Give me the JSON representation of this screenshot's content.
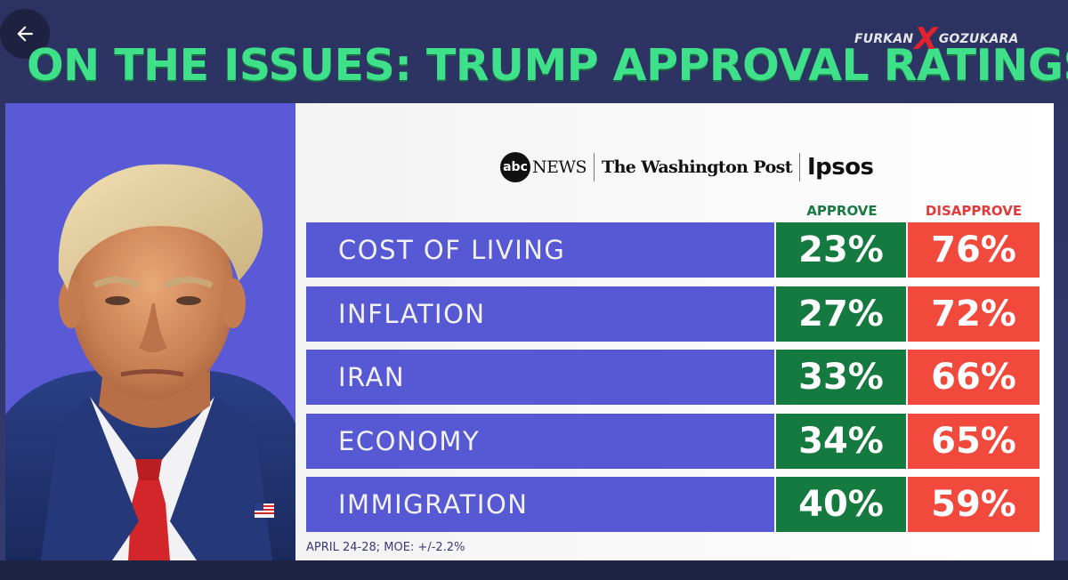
{
  "nav": {
    "back_icon": "arrow-left-icon"
  },
  "headline": "ON THE ISSUES: TRUMP APPROVAL RATINGS",
  "watermark": {
    "left": "FURKAN",
    "mark": "X",
    "right": "GOZUKARA"
  },
  "logos": {
    "abc_mark": "abc",
    "abc_text": "NEWS",
    "wapo": "The Washington Post",
    "ipsos": "Ipsos"
  },
  "colors": {
    "headline": "#3fe08a",
    "label_bar": "#5658d4",
    "approve": "#157a3f",
    "disapprove": "#f2493d",
    "left_panel": "#5a5ad6"
  },
  "chart_data": {
    "type": "table",
    "columns": [
      "APPROVE",
      "DISAPPROVE"
    ],
    "categories": [
      "COST OF LIVING",
      "INFLATION",
      "IRAN",
      "ECONOMY",
      "IMMIGRATION"
    ],
    "series": [
      {
        "name": "APPROVE",
        "values": [
          23,
          27,
          33,
          34,
          40
        ]
      },
      {
        "name": "DISAPPROVE",
        "values": [
          76,
          72,
          66,
          65,
          59
        ]
      }
    ],
    "rows": [
      {
        "label": "COST OF LIVING",
        "approve": "23%",
        "disapprove": "76%"
      },
      {
        "label": "INFLATION",
        "approve": "27%",
        "disapprove": "72%"
      },
      {
        "label": "IRAN",
        "approve": "33%",
        "disapprove": "66%"
      },
      {
        "label": "ECONOMY",
        "approve": "34%",
        "disapprove": "65%"
      },
      {
        "label": "IMMIGRATION",
        "approve": "40%",
        "disapprove": "59%"
      }
    ],
    "footnote": "APRIL 24-28; MOE: +/-2.2%"
  }
}
